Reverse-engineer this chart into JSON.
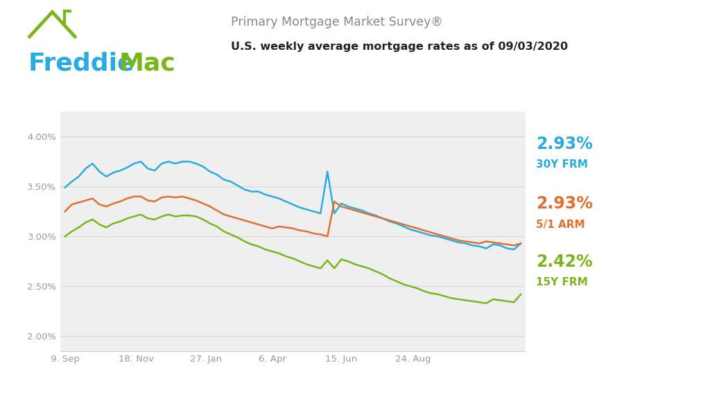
{
  "title_survey": "Primary Mortgage Market Survey®",
  "title_sub": "U.S. weekly average mortgage rates as of 09/03/2020",
  "background_color": "#ffffff",
  "plot_bg_color": "#efefef",
  "color_30y": "#29abe2",
  "color_arm": "#e07030",
  "color_15y": "#7ab51d",
  "freddie_blue": "#29abe2",
  "freddie_green": "#7ab51d",
  "xtick_labels": [
    "9. Sep",
    "18. Nov",
    "27. Jan",
    "6. Apr",
    "15. Jun",
    "24. Aug"
  ],
  "ytick_labels": [
    ".00%",
    ".50%",
    ".00%",
    ".50%",
    ".00%"
  ],
  "ytick_prefixes": [
    "2",
    "2",
    "3",
    "3",
    "4"
  ],
  "ylim": [
    1.85,
    4.25
  ],
  "ytick_vals": [
    2.0,
    2.5,
    3.0,
    3.5,
    4.0
  ],
  "y30": [
    3.49,
    3.55,
    3.6,
    3.68,
    3.73,
    3.65,
    3.6,
    3.64,
    3.66,
    3.69,
    3.73,
    3.75,
    3.68,
    3.66,
    3.73,
    3.75,
    3.73,
    3.75,
    3.75,
    3.73,
    3.7,
    3.65,
    3.62,
    3.57,
    3.55,
    3.51,
    3.47,
    3.45,
    3.45,
    3.42,
    3.4,
    3.38,
    3.35,
    3.32,
    3.29,
    3.27,
    3.25,
    3.23,
    3.65,
    3.23,
    3.33,
    3.3,
    3.28,
    3.26,
    3.23,
    3.21,
    3.18,
    3.15,
    3.13,
    3.1,
    3.07,
    3.05,
    3.03,
    3.01,
    3.0,
    2.98,
    2.96,
    2.94,
    2.93,
    2.91,
    2.9,
    2.88,
    2.92,
    2.91,
    2.88,
    2.87,
    2.93
  ],
  "yarm": [
    3.25,
    3.32,
    3.34,
    3.36,
    3.38,
    3.32,
    3.3,
    3.33,
    3.35,
    3.38,
    3.4,
    3.4,
    3.36,
    3.35,
    3.39,
    3.4,
    3.39,
    3.4,
    3.38,
    3.36,
    3.33,
    3.3,
    3.26,
    3.22,
    3.2,
    3.18,
    3.16,
    3.14,
    3.12,
    3.1,
    3.08,
    3.1,
    3.09,
    3.08,
    3.06,
    3.05,
    3.03,
    3.02,
    3.0,
    3.35,
    3.3,
    3.28,
    3.26,
    3.24,
    3.22,
    3.2,
    3.18,
    3.16,
    3.14,
    3.12,
    3.1,
    3.08,
    3.06,
    3.04,
    3.02,
    3.0,
    2.98,
    2.96,
    2.95,
    2.94,
    2.93,
    2.95,
    2.94,
    2.93,
    2.92,
    2.91,
    2.93
  ],
  "y15": [
    3.0,
    3.05,
    3.09,
    3.14,
    3.17,
    3.12,
    3.09,
    3.13,
    3.15,
    3.18,
    3.2,
    3.22,
    3.18,
    3.17,
    3.2,
    3.22,
    3.2,
    3.21,
    3.21,
    3.2,
    3.17,
    3.13,
    3.1,
    3.05,
    3.02,
    2.99,
    2.95,
    2.92,
    2.9,
    2.87,
    2.85,
    2.83,
    2.8,
    2.78,
    2.75,
    2.72,
    2.7,
    2.68,
    2.76,
    2.68,
    2.77,
    2.75,
    2.72,
    2.7,
    2.68,
    2.65,
    2.62,
    2.58,
    2.55,
    2.52,
    2.5,
    2.48,
    2.45,
    2.43,
    2.42,
    2.4,
    2.38,
    2.37,
    2.36,
    2.35,
    2.34,
    2.33,
    2.37,
    2.36,
    2.35,
    2.34,
    2.42
  ],
  "xtick_positions_frac": [
    0.0,
    0.157,
    0.309,
    0.455,
    0.606,
    0.764
  ],
  "label_30y_pct": "2.93%",
  "label_30y_name": "30Y FRM",
  "label_arm_pct": "2.93%",
  "label_arm_name": "5/1 ARM",
  "label_15y_pct": "2.42%",
  "label_15y_name": "15Y FRM",
  "pct_fontsize": 17,
  "name_fontsize": 11,
  "grid_color": "#d8d8d8",
  "tick_color": "#999999",
  "tick_fontsize": 9.5
}
